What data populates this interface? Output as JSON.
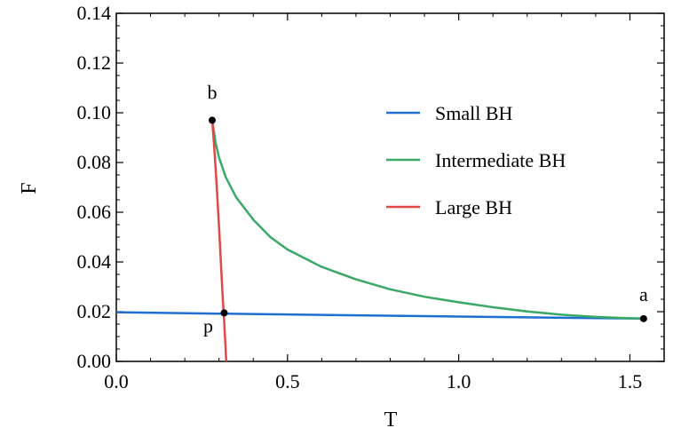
{
  "chart_data": {
    "type": "line",
    "xlabel": "T",
    "ylabel": "F",
    "xlim": [
      0.0,
      1.6
    ],
    "ylim": [
      0.0,
      0.14
    ],
    "x_ticks": [
      "0.0",
      "0.5",
      "1.0",
      "1.5"
    ],
    "y_ticks": [
      "0.00",
      "0.02",
      "0.04",
      "0.06",
      "0.08",
      "0.10",
      "0.12",
      "0.14"
    ],
    "legend_position": "top-right",
    "grid": false,
    "series": [
      {
        "name": "Small BH",
        "color": "#1f6fd1",
        "points": [
          [
            0.0,
            0.0198
          ],
          [
            0.3,
            0.0192
          ],
          [
            0.6,
            0.0187
          ],
          [
            0.9,
            0.0182
          ],
          [
            1.2,
            0.0177
          ],
          [
            1.54,
            0.0172
          ]
        ]
      },
      {
        "name": "Intermediate BH",
        "color": "#3aa866",
        "points": [
          [
            0.28,
            0.097
          ],
          [
            0.29,
            0.088
          ],
          [
            0.3,
            0.082
          ],
          [
            0.32,
            0.074
          ],
          [
            0.35,
            0.066
          ],
          [
            0.4,
            0.057
          ],
          [
            0.45,
            0.05
          ],
          [
            0.5,
            0.045
          ],
          [
            0.6,
            0.038
          ],
          [
            0.7,
            0.033
          ],
          [
            0.8,
            0.029
          ],
          [
            0.9,
            0.026
          ],
          [
            1.0,
            0.0238
          ],
          [
            1.1,
            0.0218
          ],
          [
            1.2,
            0.0201
          ],
          [
            1.3,
            0.0188
          ],
          [
            1.4,
            0.0179
          ],
          [
            1.47,
            0.0175
          ],
          [
            1.54,
            0.0172
          ]
        ]
      },
      {
        "name": "Large BH",
        "color": "#e04848",
        "points": [
          [
            0.28,
            0.097
          ],
          [
            0.285,
            0.088
          ],
          [
            0.29,
            0.078
          ],
          [
            0.295,
            0.066
          ],
          [
            0.3,
            0.054
          ],
          [
            0.305,
            0.041
          ],
          [
            0.31,
            0.028
          ],
          [
            0.315,
            0.016
          ],
          [
            0.319,
            0.006
          ],
          [
            0.321,
            0.0
          ]
        ]
      }
    ],
    "points": [
      {
        "label": "b",
        "x": 0.28,
        "y": 0.097
      },
      {
        "label": "p",
        "x": 0.315,
        "y": 0.0195
      },
      {
        "label": "a",
        "x": 1.54,
        "y": 0.0172
      }
    ]
  }
}
